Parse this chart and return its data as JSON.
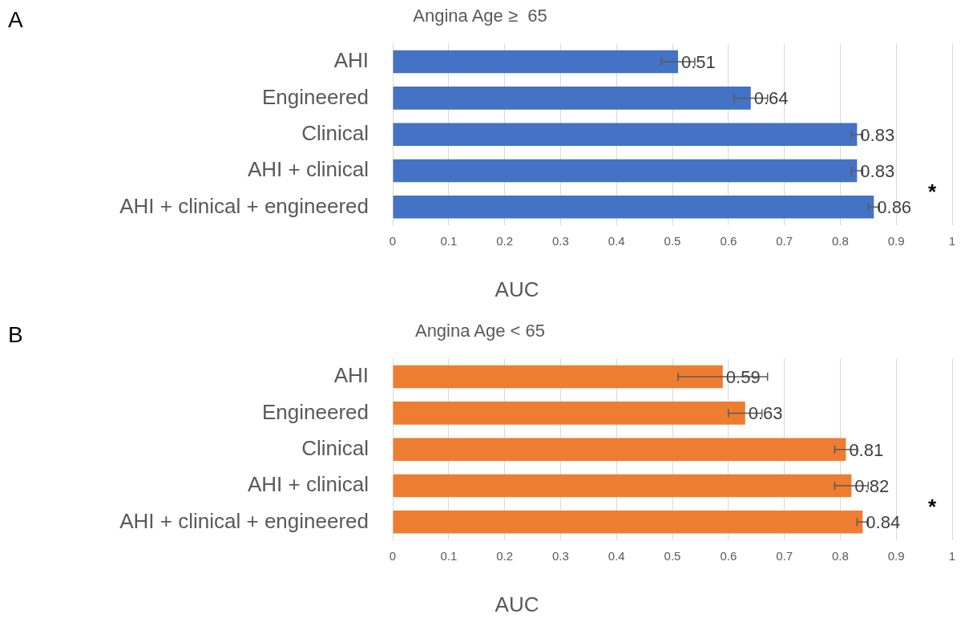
{
  "chart_data": [
    {
      "type": "bar",
      "orientation": "horizontal",
      "title": "Angina Age ≥  65",
      "xlabel": "AUC",
      "categories": [
        "AHI",
        "Engineered",
        "Clinical",
        "AHI + clinical",
        "AHI + clinical + engineered"
      ],
      "values": [
        0.51,
        0.64,
        0.83,
        0.83,
        0.86
      ],
      "errors": [
        0.03,
        0.03,
        0.01,
        0.01,
        0.01
      ],
      "color": "#4472c4",
      "xlim": [
        0,
        1
      ],
      "xticks": [
        0,
        0.1,
        0.2,
        0.3,
        0.4,
        0.5,
        0.6,
        0.7,
        0.8,
        0.9,
        1
      ],
      "grid": "x",
      "data_labels": true,
      "legend": false,
      "annotations": [
        "A",
        "*"
      ]
    },
    {
      "type": "bar",
      "orientation": "horizontal",
      "title": "Angina Age < 65",
      "xlabel": "AUC",
      "categories": [
        "AHI",
        "Engineered",
        "Clinical",
        "AHI + clinical",
        "AHI + clinical + engineered"
      ],
      "values": [
        0.59,
        0.63,
        0.81,
        0.82,
        0.84
      ],
      "errors": [
        0.08,
        0.03,
        0.02,
        0.03,
        0.01
      ],
      "color": "#ed7d31",
      "xlim": [
        0,
        1
      ],
      "xticks": [
        0,
        0.1,
        0.2,
        0.3,
        0.4,
        0.5,
        0.6,
        0.7,
        0.8,
        0.9,
        1
      ],
      "grid": "x",
      "data_labels": true,
      "legend": false,
      "annotations": [
        "B",
        "*"
      ]
    }
  ]
}
